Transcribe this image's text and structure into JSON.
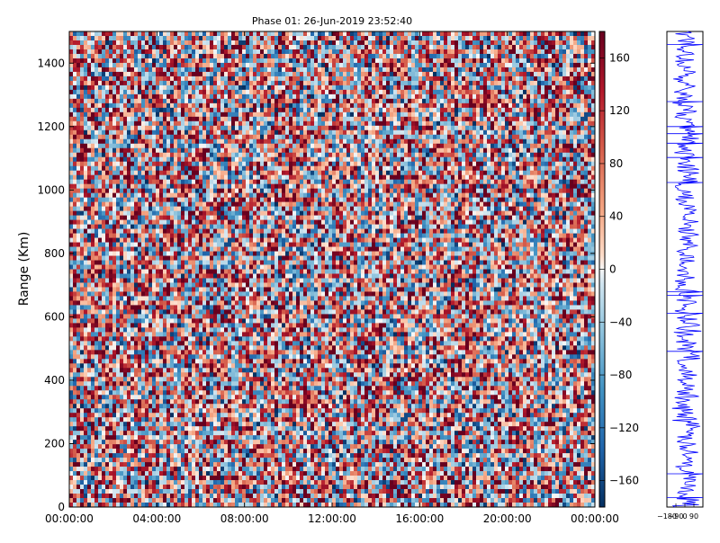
{
  "chart_data": [
    {
      "type": "heatmap",
      "title": "Phase 01: 26-Jun-2019 23:52:40",
      "ylabel": "Range (Km)",
      "xlabel": "",
      "xticks": [
        "00:00:00",
        "04:00:00",
        "08:00:00",
        "12:00:00",
        "16:00:00",
        "20:00:00",
        "00:00:00"
      ],
      "yticks": [
        0,
        200,
        400,
        600,
        800,
        1000,
        1200,
        1400
      ],
      "ylim": [
        0,
        1500
      ],
      "xlim_hours": [
        0,
        24
      ],
      "grid": false,
      "colorscale": "RdBu_r",
      "value_range": [
        -180,
        180
      ],
      "description": "noise-like random phase values across time and range"
    },
    {
      "type": "colorbar",
      "ticks": [
        160,
        120,
        80,
        40,
        0,
        -40,
        -80,
        -120,
        -160
      ],
      "range": [
        -180,
        180
      ]
    },
    {
      "type": "line",
      "series_color": "#0000ff",
      "xticks": [
        "−180",
        "−90",
        "0",
        "90"
      ],
      "xlim": [
        -180,
        180
      ],
      "ylim": [
        0,
        1500
      ],
      "description": "phase profile versus range"
    }
  ]
}
